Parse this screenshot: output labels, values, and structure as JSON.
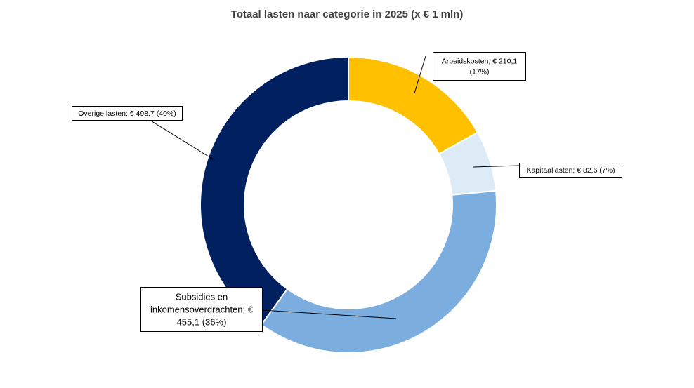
{
  "chart_data": {
    "type": "pie",
    "variant": "doughnut",
    "title": "Totaal lasten naar categorie in 2025 (x € 1 mln)",
    "legend": "none",
    "slices": [
      {
        "category": "Arbeidskosten",
        "value": 210.1,
        "percent": 17,
        "color": "#FFC000",
        "label_lines": [
          "Arbeidskosten; € 210,1",
          "(17%)"
        ]
      },
      {
        "category": "Kapitaallasten",
        "value": 82.6,
        "percent": 7,
        "color": "#DDEBF7",
        "label_lines": [
          "Kapitaallasten; € 82,6  (7%)"
        ]
      },
      {
        "category": "Subsidies en inkomensoverdrachten",
        "value": 455.1,
        "percent": 36,
        "color": "#7BAEDF",
        "label_lines": [
          "Subsidies en",
          "inkomensoverdrachten; €",
          "455,1  (36%)"
        ]
      },
      {
        "category": "Overige lasten",
        "value": 498.7,
        "percent": 40,
        "color": "#002060",
        "label_lines": [
          "Overige lasten; € 498,7  (40%)"
        ]
      }
    ]
  }
}
